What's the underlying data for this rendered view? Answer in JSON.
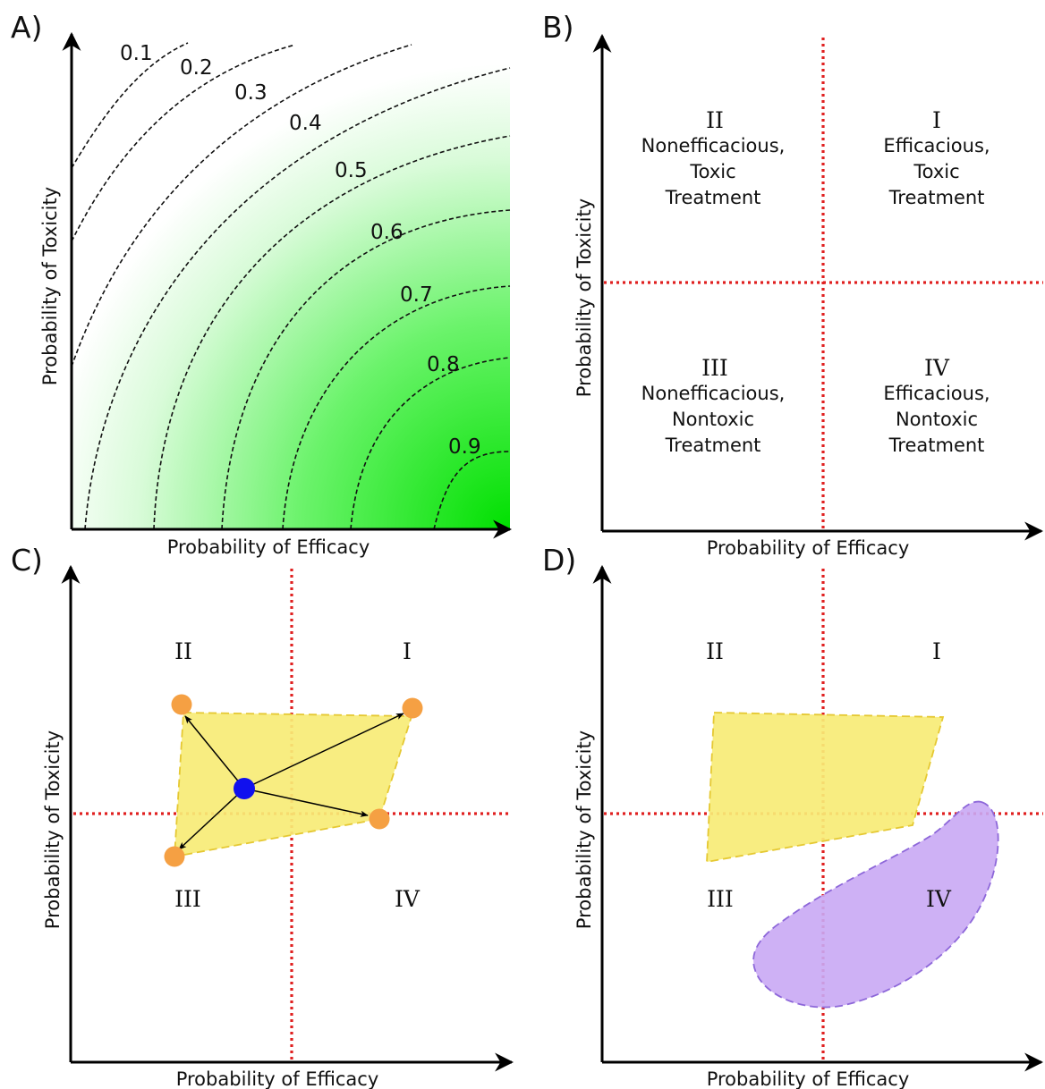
{
  "panels": {
    "a": {
      "letter": "A)",
      "x_title": "Probability of Efficacy",
      "y_title": "Probability of Toxicity",
      "contour_labels": [
        "0.1",
        "0.2",
        "0.3",
        "0.4",
        "0.5",
        "0.6",
        "0.7",
        "0.8",
        "0.9"
      ]
    },
    "b": {
      "letter": "B)",
      "x_title": "Probability of Efficacy",
      "y_title": "Probability of Toxicity",
      "quadrants": {
        "q1": {
          "numeral": "I",
          "line1": "Efficacious,",
          "line2": "Toxic",
          "line3": "Treatment"
        },
        "q2": {
          "numeral": "II",
          "line1": "Nonefficacious,",
          "line2": "Toxic",
          "line3": "Treatment"
        },
        "q3": {
          "numeral": "III",
          "line1": "Nonefficacious,",
          "line2": "Nontoxic",
          "line3": "Treatment"
        },
        "q4": {
          "numeral": "IV",
          "line1": "Efficacious,",
          "line2": "Nontoxic",
          "line3": "Treatment"
        }
      }
    },
    "c": {
      "letter": "C)",
      "x_title": "Probability of Efficacy",
      "y_title": "Probability of Toxicity",
      "numerals": {
        "q1": "I",
        "q2": "II",
        "q3": "III",
        "q4": "IV"
      }
    },
    "d": {
      "letter": "D)",
      "x_title": "Probability of Efficacy",
      "y_title": "Probability of Toxicity",
      "numerals": {
        "q1": "I",
        "q2": "II",
        "q3": "III",
        "q4": "IV"
      }
    }
  },
  "colors": {
    "gradient_end": "#00e000",
    "threshold_line": "#e02020",
    "region_yellow": "#f7ec76",
    "region_yellow_stroke": "#e5c832",
    "region_purple": "#c9a8f4",
    "region_purple_stroke": "#8d67d9",
    "vertex_orange": "#f5a043",
    "center_blue": "#1010ee"
  }
}
